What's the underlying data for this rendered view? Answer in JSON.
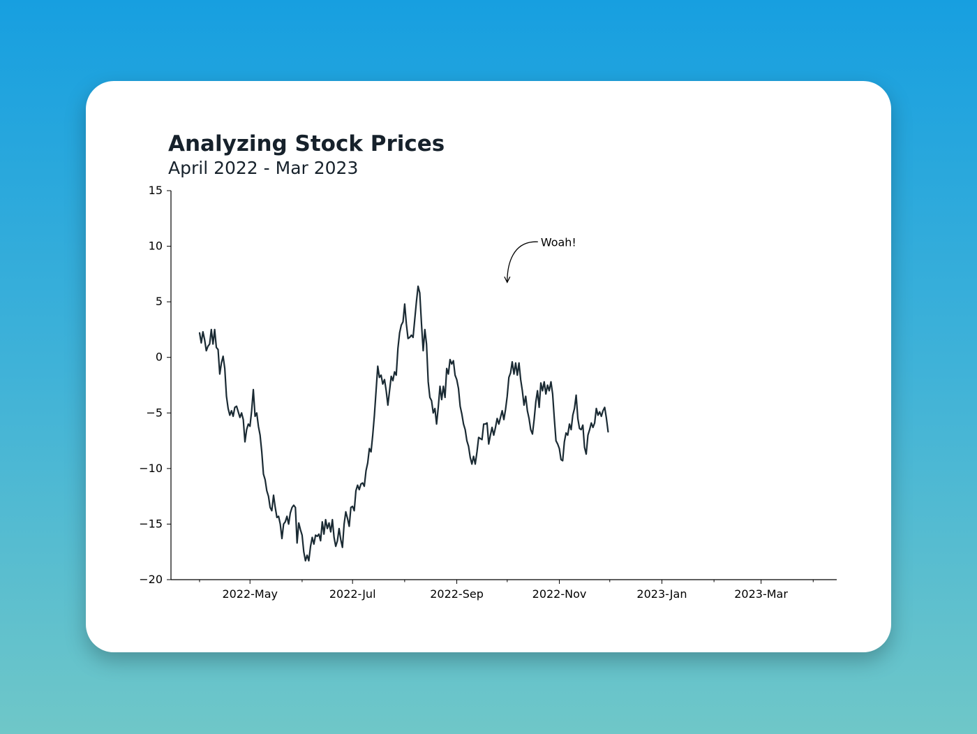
{
  "chart_data": {
    "type": "line",
    "title": "Analyzing Stock Prices",
    "subtitle": "April 2022 - Mar 2023",
    "xlabel": "",
    "ylabel": "",
    "xlim": [
      "2022-03-15",
      "2023-04-15"
    ],
    "ylim": [
      -20,
      15
    ],
    "grid": false,
    "y_ticks": [
      -20,
      -15,
      -10,
      -5,
      0,
      5,
      10,
      15
    ],
    "y_tick_labels": [
      "−20",
      "−15",
      "−10",
      "−5",
      "0",
      "5",
      "10",
      "15"
    ],
    "x_major_ticks": [
      {
        "date": "2022-05-01",
        "label": "2022-May"
      },
      {
        "date": "2022-07-01",
        "label": "2022-Jul"
      },
      {
        "date": "2022-09-01",
        "label": "2022-Sep"
      },
      {
        "date": "2022-11-01",
        "label": "2022-Nov"
      },
      {
        "date": "2023-01-01",
        "label": "2023-Jan"
      },
      {
        "date": "2023-03-01",
        "label": "2023-Mar"
      }
    ],
    "x_minor_ticks": [
      "2022-04-01",
      "2022-06-01",
      "2022-08-01",
      "2022-10-01",
      "2022-12-01",
      "2023-02-01",
      "2023-04-01"
    ],
    "annotations": [
      {
        "text": "Woah!",
        "x": "2022-10-01",
        "y": 6.5
      }
    ],
    "series": [
      {
        "color": "#1a2a33",
        "points": [
          [
            "2022-04-01",
            2.2
          ],
          [
            "2022-04-02",
            1.3
          ],
          [
            "2022-04-03",
            2.3
          ],
          [
            "2022-04-04",
            1.6
          ],
          [
            "2022-04-05",
            0.6
          ],
          [
            "2022-04-06",
            1.0
          ],
          [
            "2022-04-07",
            1.2
          ],
          [
            "2022-04-08",
            2.5
          ],
          [
            "2022-04-09",
            1.2
          ],
          [
            "2022-04-10",
            2.5
          ],
          [
            "2022-04-11",
            0.9
          ],
          [
            "2022-04-12",
            0.7
          ],
          [
            "2022-04-13",
            -1.5
          ],
          [
            "2022-04-14",
            -0.5
          ],
          [
            "2022-04-15",
            0.1
          ],
          [
            "2022-04-16",
            -1.0
          ],
          [
            "2022-04-17",
            -3.5
          ],
          [
            "2022-04-18",
            -4.6
          ],
          [
            "2022-04-19",
            -5.2
          ],
          [
            "2022-04-20",
            -4.8
          ],
          [
            "2022-04-21",
            -5.3
          ],
          [
            "2022-04-22",
            -4.5
          ],
          [
            "2022-04-23",
            -4.4
          ],
          [
            "2022-04-24",
            -4.9
          ],
          [
            "2022-04-25",
            -5.4
          ],
          [
            "2022-04-26",
            -5.0
          ],
          [
            "2022-04-27",
            -5.6
          ],
          [
            "2022-04-28",
            -7.6
          ],
          [
            "2022-04-29",
            -6.5
          ],
          [
            "2022-04-30",
            -6.0
          ],
          [
            "2022-05-01",
            -6.2
          ],
          [
            "2022-05-02",
            -4.8
          ],
          [
            "2022-05-03",
            -2.9
          ],
          [
            "2022-05-04",
            -5.3
          ],
          [
            "2022-05-05",
            -5.0
          ],
          [
            "2022-05-06",
            -6.2
          ],
          [
            "2022-05-07",
            -7.0
          ],
          [
            "2022-05-08",
            -8.5
          ],
          [
            "2022-05-09",
            -10.5
          ],
          [
            "2022-05-10",
            -11.0
          ],
          [
            "2022-05-11",
            -12.0
          ],
          [
            "2022-05-12",
            -12.5
          ],
          [
            "2022-05-13",
            -13.5
          ],
          [
            "2022-05-14",
            -13.8
          ],
          [
            "2022-05-15",
            -12.4
          ],
          [
            "2022-05-16",
            -13.5
          ],
          [
            "2022-05-17",
            -14.4
          ],
          [
            "2022-05-18",
            -14.3
          ],
          [
            "2022-05-19",
            -15.0
          ],
          [
            "2022-05-20",
            -16.3
          ],
          [
            "2022-05-21",
            -15.0
          ],
          [
            "2022-05-22",
            -14.8
          ],
          [
            "2022-05-23",
            -14.3
          ],
          [
            "2022-05-24",
            -15.0
          ],
          [
            "2022-05-25",
            -14.0
          ],
          [
            "2022-05-26",
            -13.5
          ],
          [
            "2022-05-27",
            -13.3
          ],
          [
            "2022-05-28",
            -13.5
          ],
          [
            "2022-05-29",
            -16.7
          ],
          [
            "2022-05-30",
            -14.9
          ],
          [
            "2022-05-31",
            -15.5
          ],
          [
            "2022-06-01",
            -16.0
          ],
          [
            "2022-06-02",
            -17.5
          ],
          [
            "2022-06-03",
            -18.3
          ],
          [
            "2022-06-04",
            -17.8
          ],
          [
            "2022-06-05",
            -18.3
          ],
          [
            "2022-06-06",
            -17.0
          ],
          [
            "2022-06-07",
            -16.2
          ],
          [
            "2022-06-08",
            -16.8
          ],
          [
            "2022-06-09",
            -16.0
          ],
          [
            "2022-06-10",
            -16.1
          ],
          [
            "2022-06-11",
            -15.9
          ],
          [
            "2022-06-12",
            -16.5
          ],
          [
            "2022-06-13",
            -14.8
          ],
          [
            "2022-06-14",
            -15.9
          ],
          [
            "2022-06-15",
            -14.6
          ],
          [
            "2022-06-16",
            -15.4
          ],
          [
            "2022-06-17",
            -14.9
          ],
          [
            "2022-06-18",
            -15.7
          ],
          [
            "2022-06-19",
            -14.6
          ],
          [
            "2022-06-20",
            -16.2
          ],
          [
            "2022-06-21",
            -17.0
          ],
          [
            "2022-06-22",
            -16.5
          ],
          [
            "2022-06-23",
            -15.4
          ],
          [
            "2022-06-24",
            -16.4
          ],
          [
            "2022-06-25",
            -17.1
          ],
          [
            "2022-06-26",
            -15.0
          ],
          [
            "2022-06-27",
            -13.9
          ],
          [
            "2022-06-28",
            -14.5
          ],
          [
            "2022-06-29",
            -15.2
          ],
          [
            "2022-06-30",
            -13.5
          ],
          [
            "2022-07-01",
            -13.4
          ],
          [
            "2022-07-02",
            -13.8
          ],
          [
            "2022-07-03",
            -12.0
          ],
          [
            "2022-07-04",
            -11.5
          ],
          [
            "2022-07-05",
            -11.9
          ],
          [
            "2022-07-06",
            -11.4
          ],
          [
            "2022-07-07",
            -11.3
          ],
          [
            "2022-07-08",
            -11.6
          ],
          [
            "2022-07-09",
            -10.2
          ],
          [
            "2022-07-10",
            -9.5
          ],
          [
            "2022-07-11",
            -8.2
          ],
          [
            "2022-07-12",
            -8.5
          ],
          [
            "2022-07-13",
            -7.0
          ],
          [
            "2022-07-14",
            -5.2
          ],
          [
            "2022-07-15",
            -3.0
          ],
          [
            "2022-07-16",
            -0.8
          ],
          [
            "2022-07-17",
            -1.8
          ],
          [
            "2022-07-18",
            -1.6
          ],
          [
            "2022-07-19",
            -2.4
          ],
          [
            "2022-07-20",
            -2.0
          ],
          [
            "2022-07-21",
            -3.0
          ],
          [
            "2022-07-22",
            -4.3
          ],
          [
            "2022-07-23",
            -3.0
          ],
          [
            "2022-07-24",
            -1.7
          ],
          [
            "2022-07-25",
            -2.1
          ],
          [
            "2022-07-26",
            -1.3
          ],
          [
            "2022-07-27",
            -1.6
          ],
          [
            "2022-07-28",
            0.8
          ],
          [
            "2022-07-29",
            2.2
          ],
          [
            "2022-07-30",
            2.9
          ],
          [
            "2022-07-31",
            3.2
          ],
          [
            "2022-08-01",
            4.8
          ],
          [
            "2022-08-02",
            3.0
          ],
          [
            "2022-08-03",
            1.7
          ],
          [
            "2022-08-04",
            1.8
          ],
          [
            "2022-08-05",
            2.0
          ],
          [
            "2022-08-06",
            1.8
          ],
          [
            "2022-08-07",
            3.4
          ],
          [
            "2022-08-08",
            5.0
          ],
          [
            "2022-08-09",
            6.4
          ],
          [
            "2022-08-10",
            5.8
          ],
          [
            "2022-08-11",
            3.0
          ],
          [
            "2022-08-12",
            0.6
          ],
          [
            "2022-08-13",
            2.5
          ],
          [
            "2022-08-14",
            1.2
          ],
          [
            "2022-08-15",
            -2.2
          ],
          [
            "2022-08-16",
            -3.6
          ],
          [
            "2022-08-17",
            -3.9
          ],
          [
            "2022-08-18",
            -5.0
          ],
          [
            "2022-08-19",
            -4.6
          ],
          [
            "2022-08-20",
            -6.0
          ],
          [
            "2022-08-21",
            -4.5
          ],
          [
            "2022-08-22",
            -2.6
          ],
          [
            "2022-08-23",
            -3.8
          ],
          [
            "2022-08-24",
            -2.6
          ],
          [
            "2022-08-25",
            -3.6
          ],
          [
            "2022-08-26",
            -1.0
          ],
          [
            "2022-08-27",
            -1.5
          ],
          [
            "2022-08-28",
            -0.2
          ],
          [
            "2022-08-29",
            -0.6
          ],
          [
            "2022-08-30",
            -0.3
          ],
          [
            "2022-08-31",
            -1.6
          ],
          [
            "2022-09-01",
            -2.0
          ],
          [
            "2022-09-02",
            -2.8
          ],
          [
            "2022-09-03",
            -4.4
          ],
          [
            "2022-09-04",
            -5.1
          ],
          [
            "2022-09-05",
            -6.0
          ],
          [
            "2022-09-06",
            -6.5
          ],
          [
            "2022-09-07",
            -7.5
          ],
          [
            "2022-09-08",
            -8.0
          ],
          [
            "2022-09-09",
            -9.0
          ],
          [
            "2022-09-10",
            -9.6
          ],
          [
            "2022-09-11",
            -8.9
          ],
          [
            "2022-09-12",
            -9.6
          ],
          [
            "2022-09-13",
            -8.5
          ],
          [
            "2022-09-14",
            -7.2
          ],
          [
            "2022-09-15",
            -7.3
          ],
          [
            "2022-09-16",
            -7.4
          ],
          [
            "2022-09-17",
            -6.0
          ],
          [
            "2022-09-18",
            -6.0
          ],
          [
            "2022-09-19",
            -5.9
          ],
          [
            "2022-09-20",
            -7.8
          ],
          [
            "2022-09-21",
            -7.0
          ],
          [
            "2022-09-22",
            -6.3
          ],
          [
            "2022-09-23",
            -7.0
          ],
          [
            "2022-09-24",
            -6.3
          ],
          [
            "2022-09-25",
            -5.5
          ],
          [
            "2022-09-26",
            -6.0
          ],
          [
            "2022-09-27",
            -5.4
          ],
          [
            "2022-09-28",
            -4.8
          ],
          [
            "2022-09-29",
            -5.6
          ],
          [
            "2022-09-30",
            -4.7
          ],
          [
            "2022-10-01",
            -3.5
          ],
          [
            "2022-10-02",
            -1.8
          ],
          [
            "2022-10-03",
            -1.4
          ],
          [
            "2022-10-04",
            -0.4
          ],
          [
            "2022-10-05",
            -1.5
          ],
          [
            "2022-10-06",
            -0.5
          ],
          [
            "2022-10-07",
            -1.6
          ],
          [
            "2022-10-08",
            -0.5
          ],
          [
            "2022-10-09",
            -2.0
          ],
          [
            "2022-10-10",
            -3.0
          ],
          [
            "2022-10-11",
            -4.3
          ],
          [
            "2022-10-12",
            -3.5
          ],
          [
            "2022-10-13",
            -4.8
          ],
          [
            "2022-10-14",
            -5.5
          ],
          [
            "2022-10-15",
            -6.5
          ],
          [
            "2022-10-16",
            -6.9
          ],
          [
            "2022-10-17",
            -5.6
          ],
          [
            "2022-10-18",
            -4.0
          ],
          [
            "2022-10-19",
            -3.0
          ],
          [
            "2022-10-20",
            -4.5
          ],
          [
            "2022-10-21",
            -2.3
          ],
          [
            "2022-10-22",
            -3.0
          ],
          [
            "2022-10-23",
            -2.2
          ],
          [
            "2022-10-24",
            -3.3
          ],
          [
            "2022-10-25",
            -2.5
          ],
          [
            "2022-10-26",
            -3.0
          ],
          [
            "2022-10-27",
            -2.2
          ],
          [
            "2022-10-28",
            -3.3
          ],
          [
            "2022-10-29",
            -5.5
          ],
          [
            "2022-10-30",
            -7.5
          ],
          [
            "2022-10-31",
            -7.8
          ],
          [
            "2022-11-01",
            -8.2
          ],
          [
            "2022-11-02",
            -9.2
          ],
          [
            "2022-11-03",
            -9.3
          ],
          [
            "2022-11-04",
            -7.6
          ],
          [
            "2022-11-05",
            -6.8
          ],
          [
            "2022-11-06",
            -7.0
          ],
          [
            "2022-11-07",
            -6.0
          ],
          [
            "2022-11-08",
            -6.5
          ],
          [
            "2022-11-09",
            -5.2
          ],
          [
            "2022-11-10",
            -4.6
          ],
          [
            "2022-11-11",
            -3.4
          ],
          [
            "2022-11-12",
            -5.5
          ],
          [
            "2022-11-13",
            -6.4
          ],
          [
            "2022-11-14",
            -6.5
          ],
          [
            "2022-11-15",
            -6.1
          ],
          [
            "2022-11-16",
            -8.1
          ],
          [
            "2022-11-17",
            -8.7
          ],
          [
            "2022-11-18",
            -7.0
          ],
          [
            "2022-11-19",
            -6.5
          ],
          [
            "2022-11-20",
            -5.9
          ],
          [
            "2022-11-21",
            -6.3
          ],
          [
            "2022-11-22",
            -5.9
          ],
          [
            "2022-11-23",
            -4.6
          ],
          [
            "2022-11-24",
            -5.2
          ],
          [
            "2022-11-25",
            -4.9
          ],
          [
            "2022-11-26",
            -5.3
          ],
          [
            "2022-11-27",
            -4.8
          ],
          [
            "2022-11-28",
            -4.5
          ],
          [
            "2022-11-29",
            -5.5
          ],
          [
            "2022-11-30",
            -6.7
          ]
        ]
      }
    ]
  }
}
